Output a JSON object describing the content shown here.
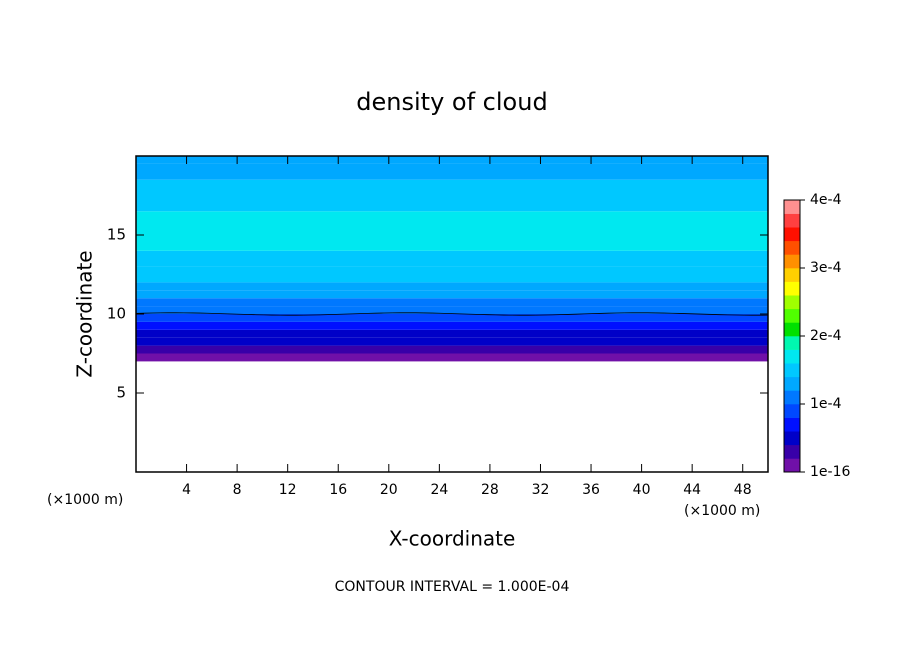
{
  "chart_data": {
    "type": "contour",
    "title": "density of cloud",
    "xlabel": "X-coordinate",
    "ylabel": "Z-coordinate",
    "x_unit_label": "(×1000 m)",
    "y_unit_label": "(×1000 m)",
    "annotation": "CONTOUR INTERVAL = 1.000E-04",
    "xlim": [
      0,
      50
    ],
    "xticks": [
      4,
      8,
      12,
      16,
      20,
      24,
      28,
      32,
      36,
      40,
      44,
      48
    ],
    "ylim": [
      0,
      20
    ],
    "yticks": [
      5,
      10,
      15
    ],
    "profile": {
      "z": [
        7,
        7.5,
        8,
        8.5,
        9,
        9.5,
        10,
        10.5,
        11,
        11.5,
        12,
        13,
        14,
        16.5,
        18.5,
        19.5
      ],
      "values": [
        1e-05,
        2.5e-05,
        4.5e-05,
        6e-05,
        7.5e-05,
        9e-05,
        0.000105,
        0.000115,
        0.000125,
        0.000135,
        0.000145,
        0.000155,
        0.000165,
        0.00015,
        0.00014,
        0.00013
      ]
    },
    "colorbar": {
      "lim": [
        1e-16,
        0.0004
      ],
      "ticks": [
        {
          "value": 1e-16,
          "label": "1e-16"
        },
        {
          "value": 0.0001,
          "label": "1e-4"
        },
        {
          "value": 0.0002,
          "label": "2e-4"
        },
        {
          "value": 0.0003,
          "label": "3e-4"
        },
        {
          "value": 0.0004,
          "label": "4e-4"
        }
      ],
      "colors": [
        "#7010a8",
        "#3800a8",
        "#0000c8",
        "#0010ff",
        "#0048ff",
        "#0078ff",
        "#00a8ff",
        "#00c8ff",
        "#00e8f0",
        "#00f8b0",
        "#00e000",
        "#50ff00",
        "#a0ff00",
        "#ffff00",
        "#ffd000",
        "#ff9000",
        "#ff5000",
        "#ff1000",
        "#ff4040",
        "#ff9090"
      ]
    }
  }
}
